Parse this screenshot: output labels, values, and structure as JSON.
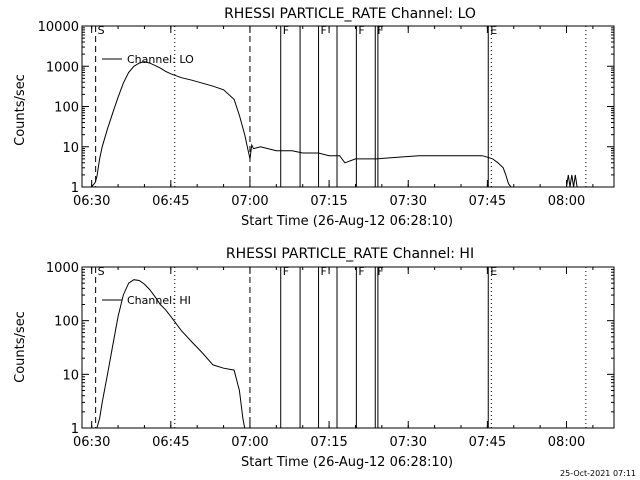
{
  "chart_data": [
    {
      "type": "line",
      "title": "RHESSI PARTICLE_RATE Channel: LO",
      "xlabel": "Start Time (26-Aug-12 06:28:10)",
      "ylabel": "Counts/sec",
      "yscale": "log",
      "ylim": [
        1,
        10000
      ],
      "xlim": [
        "06:28:10",
        "08:09:00"
      ],
      "x_ticks": [
        "06:30",
        "06:45",
        "07:00",
        "07:15",
        "07:30",
        "07:45",
        "08:00"
      ],
      "y_ticks": [
        "1",
        "10",
        "100",
        "1000",
        "10000"
      ],
      "legend": {
        "label": "Channel: LO",
        "position": "top-left"
      },
      "series": [
        {
          "name": "Channel: LO",
          "x": [
            "06:30:00",
            "06:30:40",
            "06:31:00",
            "06:31:30",
            "06:32:00",
            "06:33:00",
            "06:34:00",
            "06:35:00",
            "06:36:00",
            "06:37:00",
            "06:38:00",
            "06:39:00",
            "06:40:00",
            "06:41:00",
            "06:42:00",
            "06:43:00",
            "06:44:00",
            "06:45:00",
            "06:47:00",
            "06:49:00",
            "06:51:00",
            "06:53:00",
            "06:55:00",
            "06:57:00",
            "06:58:00",
            "06:59:00",
            "06:59:30",
            "07:00:00",
            "07:00:20",
            "07:00:40",
            "07:02:00",
            "07:05:00",
            "07:08:00",
            "07:10:00",
            "07:13:00",
            "07:15:00",
            "07:17:00",
            "07:18:00",
            "07:20:00",
            "07:24:00",
            "07:28:00",
            "07:32:00",
            "07:36:00",
            "07:40:00",
            "07:44:00",
            "07:45:00",
            "07:46:00",
            "07:47:00",
            "07:48:00",
            "07:48:30",
            "07:49:00",
            "07:49:30"
          ],
          "values": [
            1,
            1.3,
            1.8,
            5,
            10,
            28,
            70,
            170,
            380,
            700,
            1000,
            1200,
            1300,
            1200,
            1050,
            900,
            750,
            650,
            520,
            450,
            380,
            320,
            260,
            150,
            60,
            20,
            10,
            5,
            11,
            9,
            10,
            8,
            8,
            7,
            7,
            6,
            6,
            4,
            5,
            5,
            5.5,
            6,
            6,
            6,
            6,
            5.5,
            5,
            4,
            3,
            2,
            1.2,
            1
          ]
        },
        {
          "name": "",
          "x": [
            "08:00:00",
            "08:00:20",
            "08:00:40",
            "08:01:00",
            "08:01:20",
            "08:01:40",
            "08:02:00"
          ],
          "values": [
            1,
            2,
            1,
            2,
            1,
            2,
            1
          ]
        }
      ],
      "markers": [
        {
          "label": "S",
          "time": "06:30:45",
          "style": "dashed"
        },
        {
          "label": "",
          "time": "06:45:45",
          "style": "dotted"
        },
        {
          "label": "",
          "time": "07:00:00",
          "style": "dashed"
        },
        {
          "label": "F",
          "time": "07:05:50",
          "style": "solid"
        },
        {
          "label": "",
          "time": "07:09:30",
          "style": "solid"
        },
        {
          "label": "F",
          "time": "07:13:00",
          "style": "solid"
        },
        {
          "label": "",
          "time": "07:16:30",
          "style": "solid"
        },
        {
          "label": "F",
          "time": "07:20:10",
          "style": "solid"
        },
        {
          "label": "F",
          "time": "07:23:45",
          "style": "solid"
        },
        {
          "label": "",
          "time": "07:24:15",
          "style": "solid"
        },
        {
          "label": "E",
          "time": "07:45:10",
          "style": "solid"
        },
        {
          "label": "",
          "time": "07:45:45",
          "style": "dotted"
        },
        {
          "label": "",
          "time": "08:03:40",
          "style": "dotted"
        }
      ]
    },
    {
      "type": "line",
      "title": "RHESSI PARTICLE_RATE Channel: HI",
      "xlabel": "Start Time (26-Aug-12 06:28:10)",
      "ylabel": "Counts/sec",
      "yscale": "log",
      "ylim": [
        1,
        1000
      ],
      "xlim": [
        "06:28:10",
        "08:09:00"
      ],
      "x_ticks": [
        "06:30",
        "06:45",
        "07:00",
        "07:15",
        "07:30",
        "07:45",
        "08:00"
      ],
      "y_ticks": [
        "1",
        "10",
        "100",
        "1000"
      ],
      "legend": {
        "label": "Channel: HI",
        "position": "top-left"
      },
      "series": [
        {
          "name": "Channel: HI",
          "x": [
            "06:31:00",
            "06:31:30",
            "06:32:00",
            "06:33:00",
            "06:34:00",
            "06:35:00",
            "06:36:00",
            "06:37:00",
            "06:38:00",
            "06:39:00",
            "06:40:00",
            "06:41:00",
            "06:42:00",
            "06:43:00",
            "06:44:00",
            "06:45:00",
            "06:47:00",
            "06:49:00",
            "06:51:00",
            "06:53:00",
            "06:55:00",
            "06:57:00",
            "06:58:00",
            "06:58:40",
            "06:59:00"
          ],
          "values": [
            1,
            1.5,
            3,
            10,
            35,
            120,
            300,
            500,
            580,
            560,
            480,
            380,
            280,
            200,
            160,
            120,
            65,
            40,
            25,
            15,
            13,
            12,
            5,
            1.5,
            1
          ]
        }
      ],
      "markers": [
        {
          "label": "S",
          "time": "06:30:45",
          "style": "dashed"
        },
        {
          "label": "",
          "time": "06:45:45",
          "style": "dotted"
        },
        {
          "label": "",
          "time": "07:00:00",
          "style": "dashed"
        },
        {
          "label": "F",
          "time": "07:05:50",
          "style": "solid"
        },
        {
          "label": "",
          "time": "07:09:30",
          "style": "solid"
        },
        {
          "label": "F",
          "time": "07:13:00",
          "style": "solid"
        },
        {
          "label": "",
          "time": "07:16:30",
          "style": "solid"
        },
        {
          "label": "F",
          "time": "07:20:10",
          "style": "solid"
        },
        {
          "label": "F",
          "time": "07:23:45",
          "style": "solid"
        },
        {
          "label": "",
          "time": "07:24:15",
          "style": "solid"
        },
        {
          "label": "E",
          "time": "07:45:10",
          "style": "solid"
        },
        {
          "label": "",
          "time": "07:45:45",
          "style": "dotted"
        },
        {
          "label": "",
          "time": "08:03:40",
          "style": "dotted"
        }
      ]
    }
  ],
  "footer": {
    "timestamp": "25-Oct-2021 07:11"
  }
}
